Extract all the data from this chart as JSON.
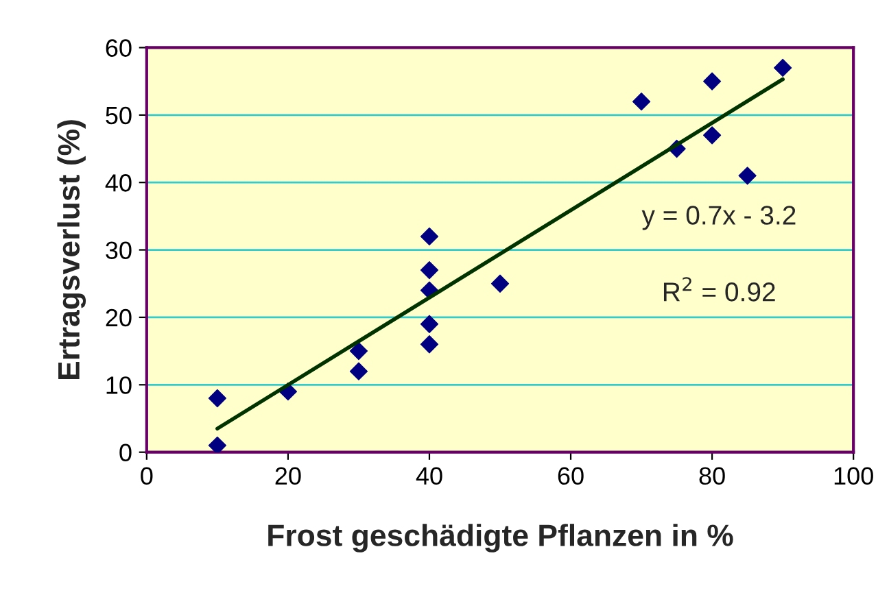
{
  "chart_data": {
    "type": "scatter",
    "xlabel": "Frost geschädigte Pflanzen in %",
    "ylabel": "Ertragsverlust (%)",
    "series": [
      {
        "color": "#000080",
        "marker": "diamond",
        "x": [
          10,
          10,
          20,
          30,
          30,
          40,
          40,
          40,
          40,
          40,
          50,
          70,
          75,
          80,
          80,
          85,
          90
        ],
        "values": [
          8,
          1,
          9,
          15,
          12,
          32,
          27,
          24,
          19,
          16,
          25,
          52,
          45,
          55,
          47,
          41,
          57
        ]
      },
      {
        "type": "line",
        "color": "#003300",
        "marker": "none",
        "x": [
          10,
          90
        ],
        "values": [
          3.5,
          55.3
        ]
      }
    ],
    "annotations": [
      "y = 0.7x - 3.2",
      "R$^{2}$ = 0.92"
    ],
    "xlim": [
      0,
      100
    ],
    "xticks": [
      0,
      20,
      40,
      60,
      80,
      100
    ],
    "ylim": [
      0,
      60
    ],
    "yticks": [
      0,
      10,
      20,
      30,
      40,
      50,
      60
    ],
    "grid": "y"
  }
}
